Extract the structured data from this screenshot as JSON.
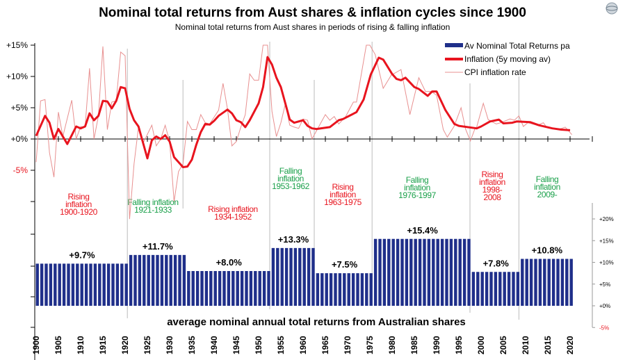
{
  "chart_data": [
    {
      "type": "line",
      "title": "Nominal total returns from Aust shares & inflation cycles since 1900",
      "subtitle": "Nominal total returns from Aust shares in periods of rising & falling inflation",
      "yticks": [
        "+15%",
        "+10%",
        "+5%",
        "+0%",
        "-5%"
      ],
      "ylim": [
        -5,
        15
      ],
      "xlim": [
        1900,
        2025
      ],
      "series": [
        {
          "name": "Inflation (5y moving av)",
          "color": "#e8141e",
          "points": [
            [
              1900,
              0.5
            ],
            [
              1902,
              3.7
            ],
            [
              1903,
              2.6
            ],
            [
              1904,
              0
            ],
            [
              1905,
              1.6
            ],
            [
              1907,
              -0.8
            ],
            [
              1909,
              2
            ],
            [
              1910,
              1.7
            ],
            [
              1911,
              2
            ],
            [
              1912,
              4.1
            ],
            [
              1913,
              3
            ],
            [
              1914,
              3.7
            ],
            [
              1915,
              6.1
            ],
            [
              1916,
              6
            ],
            [
              1917,
              4.9
            ],
            [
              1918,
              6.1
            ],
            [
              1919,
              8.3
            ],
            [
              1920,
              8.1
            ],
            [
              1921,
              4.8
            ],
            [
              1922,
              3
            ],
            [
              1923,
              2
            ],
            [
              1925,
              -3.1
            ],
            [
              1926,
              -0.2
            ],
            [
              1927,
              0.4
            ],
            [
              1928,
              0
            ],
            [
              1929,
              0.6
            ],
            [
              1930,
              -0.4
            ],
            [
              1931,
              -2.9
            ],
            [
              1933,
              -4.5
            ],
            [
              1934,
              -4.4
            ],
            [
              1935,
              -3.3
            ],
            [
              1936,
              -0.9
            ],
            [
              1937,
              1.1
            ],
            [
              1938,
              2.4
            ],
            [
              1939,
              2.3
            ],
            [
              1940,
              2.9
            ],
            [
              1941,
              3.7
            ],
            [
              1943,
              4.7
            ],
            [
              1944,
              4.1
            ],
            [
              1945,
              3
            ],
            [
              1946,
              2.7
            ],
            [
              1947,
              1.9
            ],
            [
              1948,
              3
            ],
            [
              1950,
              5.7
            ],
            [
              1951,
              8.3
            ],
            [
              1952,
              13.1
            ],
            [
              1953,
              11.9
            ],
            [
              1954,
              9.8
            ],
            [
              1955,
              8.3
            ],
            [
              1957,
              3.1
            ],
            [
              1958,
              2.6
            ],
            [
              1960,
              3
            ],
            [
              1961,
              2.1
            ],
            [
              1962,
              1.7
            ],
            [
              1963,
              1.6
            ],
            [
              1966,
              1.9
            ],
            [
              1968,
              3
            ],
            [
              1969,
              3.2
            ],
            [
              1972,
              4.3
            ],
            [
              1973.6,
              6.3
            ],
            [
              1975.2,
              10.3
            ],
            [
              1977,
              13
            ],
            [
              1978,
              12.7
            ],
            [
              1980,
              10.4
            ],
            [
              1981,
              9.6
            ],
            [
              1982,
              9.4
            ],
            [
              1983,
              9.8
            ],
            [
              1985,
              8.3
            ],
            [
              1986,
              8
            ],
            [
              1988,
              6.9
            ],
            [
              1989,
              7.6
            ],
            [
              1990,
              7.6
            ],
            [
              1992,
              4.6
            ],
            [
              1994,
              2.4
            ],
            [
              1995,
              2.1
            ],
            [
              1999,
              1.7
            ],
            [
              2000,
              2
            ],
            [
              2002,
              2.8
            ],
            [
              2004,
              3.1
            ],
            [
              2005,
              2.5
            ],
            [
              2007,
              2.6
            ],
            [
              2008,
              2.8
            ],
            [
              2011,
              2.7
            ],
            [
              2013,
              2.2
            ],
            [
              2016,
              1.7
            ],
            [
              2018,
              1.5
            ],
            [
              2020,
              1.4
            ]
          ]
        },
        {
          "name": "CPI inflation rate",
          "color": "#e89090",
          "points": [
            [
              1900,
              -3.7
            ],
            [
              1901,
              6.1
            ],
            [
              1902,
              6.3
            ],
            [
              1903,
              -2.2
            ],
            [
              1904,
              -6.1
            ],
            [
              1905,
              4.3
            ],
            [
              1906,
              0.4
            ],
            [
              1908,
              6.2
            ],
            [
              1909,
              0
            ],
            [
              1910,
              2
            ],
            [
              1911,
              1.9
            ],
            [
              1912,
              11.3
            ],
            [
              1913,
              0
            ],
            [
              1914,
              3.7
            ],
            [
              1915,
              14.8
            ],
            [
              1916,
              1.5
            ],
            [
              1917,
              5.9
            ],
            [
              1918,
              6.1
            ],
            [
              1919,
              13.9
            ],
            [
              1920,
              13.3
            ],
            [
              1921,
              -12.8
            ],
            [
              1922,
              -4
            ],
            [
              1923,
              1.9
            ],
            [
              1924,
              -0.7
            ],
            [
              1926,
              2.2
            ],
            [
              1927,
              -1.1
            ],
            [
              1928,
              0
            ],
            [
              1929,
              2.2
            ],
            [
              1930,
              -0.4
            ],
            [
              1931,
              -10
            ],
            [
              1932,
              -5.2
            ],
            [
              1933,
              -4
            ],
            [
              1934,
              2.8
            ],
            [
              1935,
              1.5
            ],
            [
              1936,
              1.5
            ],
            [
              1937,
              3.9
            ],
            [
              1938,
              2.6
            ],
            [
              1939,
              2.4
            ],
            [
              1941,
              4.6
            ],
            [
              1942,
              8.9
            ],
            [
              1943,
              4.8
            ],
            [
              1944,
              -1.1
            ],
            [
              1945,
              -0.4
            ],
            [
              1946,
              1.9
            ],
            [
              1947,
              3.9
            ],
            [
              1948,
              10.4
            ],
            [
              1949,
              9.4
            ],
            [
              1950,
              9.4
            ],
            [
              1951,
              15
            ],
            [
              1952,
              15
            ],
            [
              1953,
              4.4
            ],
            [
              1954,
              0.4
            ],
            [
              1955,
              2.6
            ],
            [
              1956,
              5.6
            ],
            [
              1957,
              2.2
            ],
            [
              1958,
              1.9
            ],
            [
              1959,
              1.7
            ],
            [
              1960,
              3.2
            ],
            [
              1961,
              3
            ],
            [
              1962,
              0
            ],
            [
              1965,
              3.9
            ],
            [
              1966,
              3
            ],
            [
              1967,
              3.6
            ],
            [
              1968,
              2.4
            ],
            [
              1969.5,
              3.5
            ],
            [
              1971.3,
              5.9
            ],
            [
              1972,
              5.9
            ],
            [
              1974.2,
              15
            ],
            [
              1975,
              15
            ],
            [
              1976.2,
              13.5
            ],
            [
              1978,
              8.1
            ],
            [
              1979.8,
              10.2
            ],
            [
              1982,
              11.1
            ],
            [
              1984,
              3.9
            ],
            [
              1986,
              9.8
            ],
            [
              1987.5,
              7.6
            ],
            [
              1988.8,
              7.6
            ],
            [
              1990,
              7
            ],
            [
              1991.5,
              1.5
            ],
            [
              1992.4,
              0.3
            ],
            [
              1993.9,
              2
            ],
            [
              1995.5,
              5
            ],
            [
              1996.5,
              1.6
            ],
            [
              1997.6,
              -0.3
            ],
            [
              1998.6,
              1.6
            ],
            [
              1999,
              1.9
            ],
            [
              2000.5,
              5.7
            ],
            [
              2001.6,
              3.1
            ],
            [
              2003.4,
              2.4
            ],
            [
              2004.4,
              2.6
            ],
            [
              2006.5,
              3.2
            ],
            [
              2007.5,
              3
            ],
            [
              2008.5,
              3.7
            ],
            [
              2009.5,
              2
            ],
            [
              2010.5,
              2.6
            ],
            [
              2012.6,
              2.2
            ],
            [
              2014,
              2.6
            ],
            [
              2014.7,
              1.9
            ],
            [
              2017.3,
              1.5
            ],
            [
              2018.9,
              1.9
            ],
            [
              2020.4,
              0.7
            ]
          ]
        }
      ]
    },
    {
      "type": "bar",
      "xlabel": "average nominal annual total returns from Australian shares",
      "yticks": [
        "+20%",
        "+15%",
        "+10%",
        "+5%",
        "+0%",
        "-5%"
      ],
      "ylim": [
        -5,
        25
      ],
      "series": [
        {
          "name": "Av Nominal Total Returns pa",
          "color": "#1f2f8a"
        }
      ],
      "periods": [
        {
          "start": 1900,
          "end": 1920,
          "value": 9.7,
          "label": "+9.7%",
          "name": [
            "Rising",
            "inflation",
            "1900-1920"
          ],
          "phase": "rising"
        },
        {
          "start": 1921,
          "end": 1933,
          "value": 11.7,
          "label": "+11.7%",
          "name": [
            "Falling inflation",
            "1921-1933"
          ],
          "phase": "falling"
        },
        {
          "start": 1934,
          "end": 1952,
          "value": 8.0,
          "label": "+8.0%",
          "name": [
            "Rising inflation",
            "1934-1952"
          ],
          "phase": "rising"
        },
        {
          "start": 1953,
          "end": 1962,
          "value": 13.3,
          "label": "+13.3%",
          "name": [
            "Falling",
            "inflation",
            "1953-1962"
          ],
          "phase": "falling"
        },
        {
          "start": 1963,
          "end": 1975,
          "value": 7.5,
          "label": "+7.5%",
          "name": [
            "Rising",
            "inflation",
            "1963-1975"
          ],
          "phase": "rising"
        },
        {
          "start": 1976,
          "end": 1997,
          "value": 15.4,
          "label": "+15.4%",
          "name": [
            "Falling",
            "inflation",
            "1976-1997"
          ],
          "phase": "falling"
        },
        {
          "start": 1998,
          "end": 2008,
          "value": 7.8,
          "label": "+7.8%",
          "name": [
            "Rising",
            "inflation",
            "1998-",
            "2008"
          ],
          "phase": "rising"
        },
        {
          "start": 2009,
          "end": 2020,
          "value": 10.8,
          "label": "+10.8%",
          "name": [
            "Falling",
            "inflation",
            "2009-"
          ],
          "phase": "falling"
        }
      ],
      "xticks": [
        "1900",
        "1905",
        "1910",
        "1915",
        "1920",
        "1925",
        "1930",
        "1935",
        "1940",
        "1945",
        "1950",
        "1955",
        "1960",
        "1965",
        "1970",
        "1975",
        "1980",
        "1985",
        "1990",
        "1995",
        "2000",
        "2005",
        "2010",
        "2015",
        "2020"
      ]
    }
  ],
  "legend": {
    "placement": "top-right",
    "items": [
      "Av Nominal Total Returns pa",
      "Inflation (5y moving av)",
      "CPI inflation rate"
    ]
  },
  "colors": {
    "rising": "#e8141e",
    "falling": "#1aa04a",
    "bars": "#1f2f8a",
    "divider": "#bbbbbb"
  },
  "logo": {
    "icon": "globe-logo-icon"
  }
}
